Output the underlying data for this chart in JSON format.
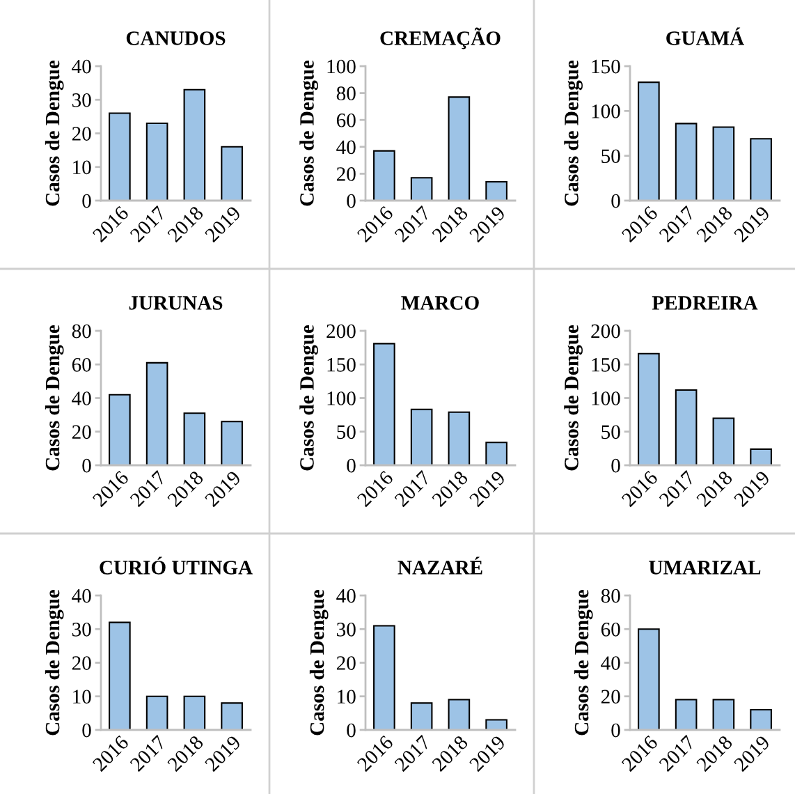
{
  "chart_data": [
    {
      "type": "bar",
      "title": "CANUDOS",
      "ylabel": "Casos de Dengue",
      "categories": [
        "2016",
        "2017",
        "2018",
        "2019"
      ],
      "values": [
        26,
        23,
        33,
        16
      ],
      "color": "#9dc3e6",
      "ylim": [
        0,
        40
      ],
      "yticks": [
        0,
        10,
        20,
        30,
        40
      ]
    },
    {
      "type": "bar",
      "title": "CREMAÇÃO",
      "ylabel": "Casos de Dengue",
      "categories": [
        "2016",
        "2017",
        "2018",
        "2019"
      ],
      "values": [
        37,
        17,
        77,
        14
      ],
      "color": "#9dc3e6",
      "ylim": [
        0,
        100
      ],
      "yticks": [
        0,
        20,
        40,
        60,
        80,
        100
      ]
    },
    {
      "type": "bar",
      "title": "GUAMÁ",
      "ylabel": "Casos de Dengue",
      "categories": [
        "2016",
        "2017",
        "2018",
        "2019"
      ],
      "values": [
        132,
        86,
        82,
        69
      ],
      "color": "#9dc3e6",
      "ylim": [
        0,
        150
      ],
      "yticks": [
        0,
        50,
        100,
        150
      ]
    },
    {
      "type": "bar",
      "title": "JURUNAS",
      "ylabel": "Casos de Dengue",
      "categories": [
        "2016",
        "2017",
        "2018",
        "2019"
      ],
      "values": [
        42,
        61,
        31,
        26
      ],
      "color": "#9dc3e6",
      "ylim": [
        0,
        80
      ],
      "yticks": [
        0,
        20,
        40,
        60,
        80
      ]
    },
    {
      "type": "bar",
      "title": "MARCO",
      "ylabel": "Casos de Dengue",
      "categories": [
        "2016",
        "2017",
        "2018",
        "2019"
      ],
      "values": [
        181,
        83,
        79,
        34
      ],
      "color": "#9dc3e6",
      "ylim": [
        0,
        200
      ],
      "yticks": [
        0,
        50,
        100,
        150,
        200
      ]
    },
    {
      "type": "bar",
      "title": "PEDREIRA",
      "ylabel": "Casos de Dengue",
      "categories": [
        "2016",
        "2017",
        "2018",
        "2019"
      ],
      "values": [
        166,
        112,
        70,
        24
      ],
      "color": "#9dc3e6",
      "ylim": [
        0,
        200
      ],
      "yticks": [
        0,
        50,
        100,
        150,
        200
      ]
    },
    {
      "type": "bar",
      "title": "CURIÓ UTINGA",
      "ylabel": "Casos de Dengue",
      "categories": [
        "2016",
        "2017",
        "2018",
        "2019"
      ],
      "values": [
        32,
        10,
        10,
        8
      ],
      "color": "#9dc3e6",
      "ylim": [
        0,
        40
      ],
      "yticks": [
        0,
        10,
        20,
        30,
        40
      ]
    },
    {
      "type": "bar",
      "title": "NAZARÉ",
      "ylabel": "Casos de Dengue",
      "categories": [
        "2016",
        "2017",
        "2018",
        "2019"
      ],
      "values": [
        31,
        8,
        9,
        3
      ],
      "color": "#9dc3e6",
      "ylim": [
        0,
        40
      ],
      "yticks": [
        0,
        10,
        20,
        30,
        40
      ]
    },
    {
      "type": "bar",
      "title": "UMARIZAL",
      "ylabel": "Casos de Dengue",
      "categories": [
        "2016",
        "2017",
        "2018",
        "2019"
      ],
      "values": [
        60,
        18,
        18,
        12
      ],
      "color": "#9dc3e6",
      "ylim": [
        0,
        80
      ],
      "yticks": [
        0,
        20,
        40,
        60,
        80
      ]
    }
  ]
}
